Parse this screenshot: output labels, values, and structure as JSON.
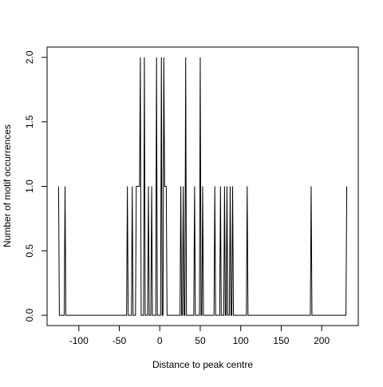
{
  "chart_data": {
    "type": "line",
    "xlabel": "Distance to peak centre",
    "ylabel": "Number of motif occurrences",
    "x": [
      -125,
      -124,
      -118,
      -117,
      -116,
      -41,
      -40,
      -39,
      -35,
      -34,
      -33,
      -30,
      -29,
      -25,
      -24,
      -23,
      -20,
      -19,
      -18,
      -15,
      -14,
      -13,
      -11,
      -10,
      -9,
      -5,
      -4,
      -3,
      1,
      2,
      3,
      4,
      5,
      6,
      8,
      9,
      25,
      26,
      27,
      28,
      29,
      30,
      31,
      32,
      33,
      42,
      43,
      44,
      49,
      50,
      51,
      52,
      53,
      54,
      67,
      68,
      69,
      74,
      75,
      76,
      79,
      80,
      81,
      82,
      83,
      84,
      86,
      87,
      88,
      89,
      90,
      91,
      107,
      108,
      109,
      186,
      187,
      188,
      230,
      231
    ],
    "values": [
      1,
      0,
      0,
      1,
      0,
      0,
      1,
      0,
      0,
      1,
      0,
      0,
      1,
      1,
      2,
      0,
      0,
      2,
      0,
      0,
      1,
      0,
      0,
      1,
      0,
      0,
      2,
      0,
      0,
      2,
      0,
      0,
      2,
      1,
      1,
      0,
      0,
      1,
      0,
      0,
      1,
      0,
      0,
      2,
      0,
      0,
      1,
      0,
      0,
      2,
      0,
      0,
      1,
      0,
      0,
      1,
      0,
      0,
      1,
      0,
      0,
      1,
      0,
      0,
      1,
      0,
      0,
      1,
      0,
      0,
      1,
      0,
      0,
      1,
      0,
      0,
      1,
      0,
      0,
      1
    ],
    "color": "#000000",
    "xlim": [
      -139.2,
      245.2
    ],
    "ylim": [
      -0.08,
      2.08
    ],
    "xticks": [
      -100,
      -50,
      0,
      50,
      100,
      150,
      200
    ],
    "yticks": [
      {
        "value": 0,
        "label": "0.0"
      },
      {
        "value": 0.5,
        "label": "0.5"
      },
      {
        "value": 1,
        "label": "1.0"
      },
      {
        "value": 1.5,
        "label": "1.5"
      },
      {
        "value": 2,
        "label": "2.0"
      }
    ]
  }
}
